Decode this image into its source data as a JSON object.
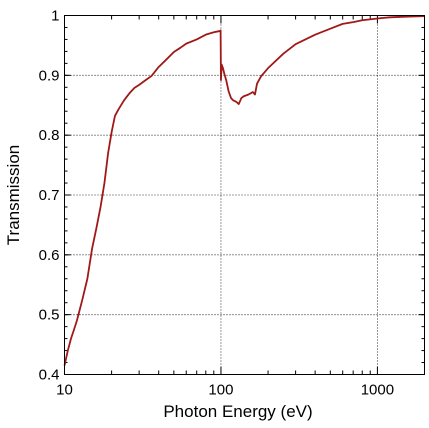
{
  "chart_data": {
    "type": "line",
    "title": "",
    "xlabel": "Photon Energy (eV)",
    "ylabel": "Transmission",
    "xscale": "log",
    "xlim": [
      10,
      2000
    ],
    "ylim": [
      0.4,
      1.0
    ],
    "xticks": [
      10,
      100,
      1000
    ],
    "xtick_labels": [
      "10",
      "100",
      "1000"
    ],
    "yticks": [
      0.4,
      0.5,
      0.6,
      0.7,
      0.8,
      0.9,
      1.0
    ],
    "ytick_labels": [
      "0.4",
      "0.5",
      "0.6",
      "0.7",
      "0.8",
      "0.9",
      "1"
    ],
    "grid": true,
    "line_color": "#a01818",
    "series": [
      {
        "x": [
          10,
          10.5,
          11,
          11.5,
          12,
          13,
          14,
          15,
          16,
          17,
          18,
          19,
          20,
          21,
          22,
          24,
          26,
          28,
          30,
          33,
          36,
          40,
          45,
          50,
          55,
          60,
          70,
          80,
          90,
          98,
          99.5,
          100,
          101,
          103,
          105,
          108,
          112,
          116,
          120,
          125,
          130,
          135,
          140,
          150,
          160,
          165,
          170,
          180,
          200,
          250,
          300,
          400,
          500,
          600,
          700,
          800,
          1000,
          1200,
          1500,
          2000
        ],
        "y": [
          0.415,
          0.44,
          0.46,
          0.475,
          0.49,
          0.525,
          0.56,
          0.61,
          0.645,
          0.68,
          0.72,
          0.77,
          0.805,
          0.832,
          0.842,
          0.858,
          0.87,
          0.879,
          0.884,
          0.892,
          0.899,
          0.914,
          0.927,
          0.939,
          0.946,
          0.953,
          0.96,
          0.968,
          0.972,
          0.974,
          0.975,
          0.892,
          0.918,
          0.912,
          0.903,
          0.892,
          0.873,
          0.862,
          0.858,
          0.856,
          0.852,
          0.862,
          0.865,
          0.868,
          0.872,
          0.868,
          0.886,
          0.898,
          0.912,
          0.936,
          0.952,
          0.968,
          0.978,
          0.986,
          0.989,
          0.992,
          0.995,
          0.997,
          0.998,
          0.999
        ]
      }
    ]
  }
}
